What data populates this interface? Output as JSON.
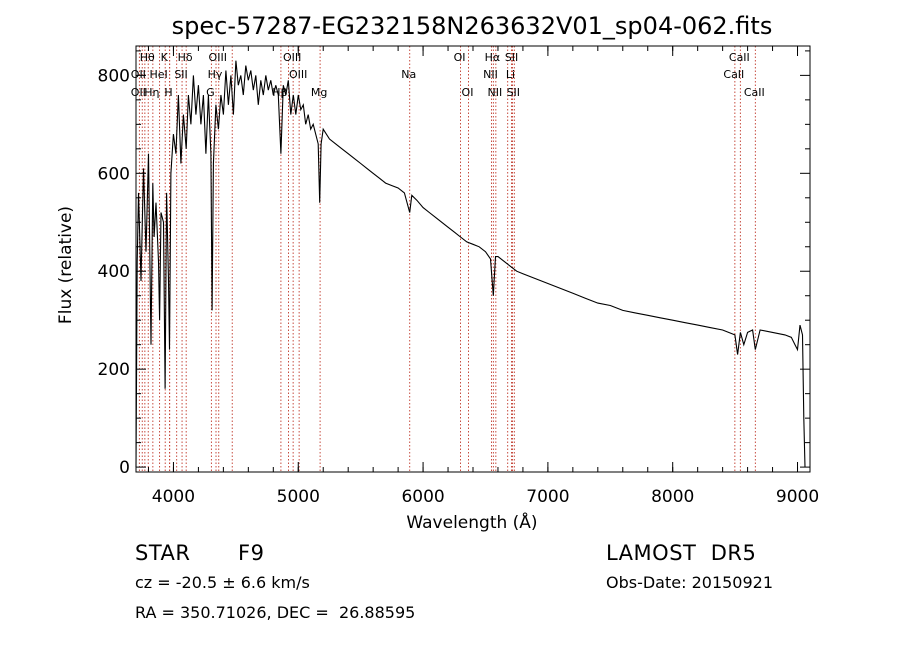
{
  "chart_data": {
    "type": "line",
    "title": "spec-57287-EG232158N263632V01_sp04-062.fits",
    "xlabel": "Wavelength (Å)",
    "ylabel": "Flux (relative)",
    "xlim": [
      3700,
      9100
    ],
    "ylim": [
      -10,
      860
    ],
    "xticks": [
      4000,
      5000,
      6000,
      7000,
      8000,
      9000
    ],
    "yticks": [
      0,
      200,
      400,
      600,
      800
    ],
    "grid": false,
    "series": [
      {
        "values_note": "",
        "x": [
          3700,
          3710,
          3720,
          3740,
          3760,
          3780,
          3800,
          3820,
          3835,
          3845,
          3860,
          3880,
          3889,
          3900,
          3920,
          3933,
          3945,
          3960,
          3968,
          3980,
          4000,
          4020,
          4040,
          4060,
          4080,
          4102,
          4120,
          4140,
          4160,
          4180,
          4200,
          4220,
          4240,
          4260,
          4280,
          4300,
          4310,
          4320,
          4340,
          4360,
          4380,
          4400,
          4420,
          4440,
          4460,
          4480,
          4500,
          4520,
          4540,
          4560,
          4580,
          4600,
          4620,
          4640,
          4660,
          4680,
          4700,
          4720,
          4740,
          4760,
          4780,
          4800,
          4820,
          4840,
          4861,
          4880,
          4900,
          4920,
          4940,
          4960,
          4980,
          5000,
          5020,
          5040,
          5060,
          5080,
          5100,
          5120,
          5140,
          5160,
          5172,
          5183,
          5200,
          5250,
          5300,
          5350,
          5400,
          5450,
          5500,
          5550,
          5600,
          5650,
          5700,
          5750,
          5800,
          5850,
          5893,
          5910,
          5950,
          6000,
          6050,
          6100,
          6150,
          6200,
          6250,
          6300,
          6350,
          6400,
          6450,
          6500,
          6540,
          6563,
          6580,
          6600,
          6650,
          6700,
          6750,
          6800,
          6900,
          7000,
          7100,
          7200,
          7300,
          7400,
          7500,
          7600,
          7700,
          7800,
          7900,
          8000,
          8100,
          8200,
          8300,
          8400,
          8498,
          8520,
          8542,
          8570,
          8600,
          8640,
          8662,
          8700,
          8800,
          8900,
          8950,
          8980,
          9000,
          9020,
          9040,
          9050,
          9060
        ],
        "values": [
          0,
          420,
          560,
          380,
          610,
          440,
          640,
          250,
          580,
          470,
          540,
          420,
          300,
          520,
          500,
          160,
          560,
          380,
          240,
          600,
          680,
          640,
          760,
          620,
          720,
          650,
          760,
          700,
          800,
          720,
          780,
          700,
          760,
          640,
          760,
          640,
          320,
          620,
          740,
          690,
          760,
          720,
          810,
          740,
          800,
          720,
          830,
          780,
          800,
          760,
          820,
          790,
          810,
          770,
          800,
          740,
          790,
          760,
          800,
          770,
          790,
          760,
          780,
          760,
          640,
          780,
          760,
          790,
          720,
          760,
          720,
          760,
          730,
          740,
          700,
          720,
          690,
          700,
          680,
          660,
          540,
          660,
          690,
          670,
          660,
          650,
          640,
          630,
          620,
          610,
          600,
          590,
          580,
          575,
          570,
          560,
          520,
          555,
          545,
          530,
          520,
          510,
          500,
          490,
          480,
          470,
          460,
          455,
          450,
          440,
          425,
          350,
          430,
          430,
          420,
          410,
          400,
          395,
          385,
          375,
          365,
          355,
          345,
          335,
          330,
          320,
          315,
          310,
          305,
          300,
          295,
          290,
          285,
          280,
          270,
          230,
          275,
          250,
          275,
          280,
          240,
          280,
          275,
          270,
          265,
          250,
          240,
          290,
          270,
          100,
          0
        ]
      }
    ],
    "lines_top": [
      {
        "name": "Hθ",
        "x": 3798
      },
      {
        "name": "K",
        "x": 3934
      },
      {
        "name": "Hδ",
        "x": 4102
      },
      {
        "name": "OIII",
        "x": 4363
      },
      {
        "name": "OIII",
        "x": 4959
      },
      {
        "name": "OI",
        "x": 6300
      },
      {
        "name": "Hα",
        "x": 6563
      },
      {
        "name": "SII",
        "x": 6717
      },
      {
        "name": "CaII",
        "x": 8542
      }
    ],
    "lines_mid": [
      {
        "name": "OII",
        "x": 3727
      },
      {
        "name": "HeI",
        "x": 3889
      },
      {
        "name": "SII",
        "x": 4069
      },
      {
        "name": "Hγ",
        "x": 4341
      },
      {
        "name": "OIII",
        "x": 5007
      },
      {
        "name": "Na",
        "x": 5893
      },
      {
        "name": "NII",
        "x": 6548
      },
      {
        "name": "Li",
        "x": 6708
      },
      {
        "name": "CaII",
        "x": 8498
      }
    ],
    "lines_bottom": [
      {
        "name": "OII",
        "x": 3727
      },
      {
        "name": "Hη",
        "x": 3835
      },
      {
        "name": "H",
        "x": 3969
      },
      {
        "name": "G",
        "x": 4304
      },
      {
        "name": "Hβ",
        "x": 4861
      },
      {
        "name": "Mg",
        "x": 5175
      },
      {
        "name": "OI",
        "x": 6364
      },
      {
        "name": "NII",
        "x": 6583
      },
      {
        "name": "SII",
        "x": 6731
      },
      {
        "name": "CaII",
        "x": 8662
      }
    ],
    "extra_marker_lines": [
      3750,
      3771,
      3889,
      3970,
      4026,
      4471,
      4922,
      6678,
      8662
    ]
  },
  "info": {
    "class": "STAR",
    "subclass": "F9",
    "survey": "LAMOST  DR5",
    "cz": "cz = -20.5 ± 6.6 km/s",
    "obs_date": "Obs-Date: 20150921",
    "coords": "RA = 350.71026, DEC =  26.88595"
  }
}
